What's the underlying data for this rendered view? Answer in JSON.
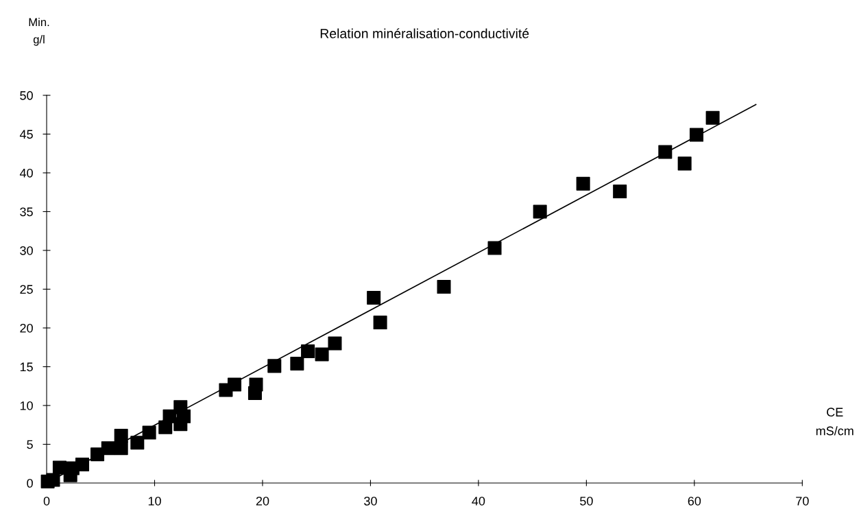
{
  "chart_data": {
    "type": "scatter",
    "title": "Relation minéralisation-conductivité",
    "xlabel": "CE\nmS/cm",
    "ylabel": "Min.\ng/l",
    "xlim": [
      0,
      70
    ],
    "ylim": [
      0,
      50
    ],
    "xticks": [
      0,
      10,
      20,
      30,
      40,
      50,
      60,
      70
    ],
    "yticks": [
      0,
      5,
      10,
      15,
      20,
      25,
      30,
      35,
      40,
      45,
      50
    ],
    "grid": false,
    "series": [
      {
        "marker": "square",
        "color": "#000000",
        "x": [
          0.1,
          0.6,
          1.2,
          2.2,
          2.4,
          3.3,
          4.7,
          5.7,
          6.9,
          6.9,
          8.4,
          9.5,
          11.0,
          11.4,
          12.4,
          12.7,
          12.4,
          16.6,
          17.4,
          19.3,
          19.4,
          21.1,
          23.2,
          24.2,
          25.5,
          26.7,
          30.3,
          30.9,
          36.8,
          41.5,
          45.7,
          49.7,
          53.1,
          57.3,
          59.1,
          60.2,
          61.7
        ],
        "values": [
          0.2,
          0.4,
          2.0,
          1.0,
          1.9,
          2.4,
          3.7,
          4.5,
          4.5,
          6.1,
          5.2,
          6.5,
          7.2,
          8.6,
          7.6,
          8.6,
          9.8,
          12.0,
          12.7,
          11.6,
          12.7,
          15.1,
          15.4,
          17.0,
          16.6,
          18.0,
          23.9,
          20.7,
          25.3,
          30.3,
          35.0,
          38.6,
          37.6,
          42.7,
          41.2,
          44.9,
          47.1
        ]
      },
      {
        "type": "line",
        "color": "#000000",
        "x": [
          0.5,
          65.7
        ],
        "values": [
          0.4,
          48.8
        ]
      }
    ]
  }
}
